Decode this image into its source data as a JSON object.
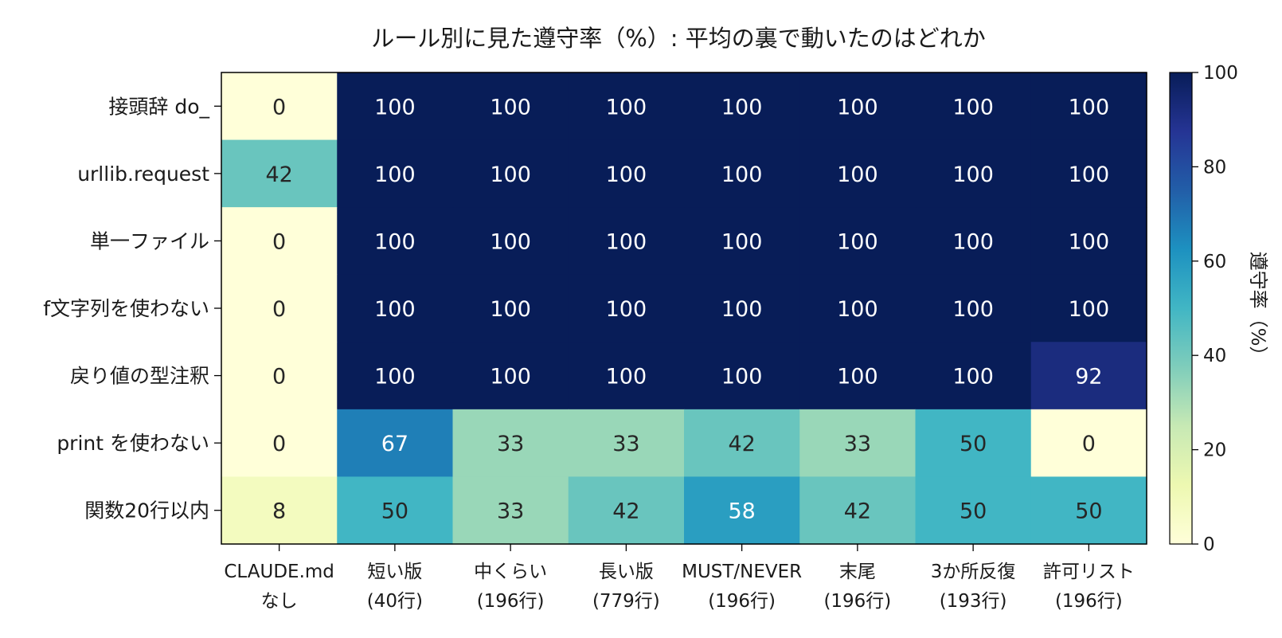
{
  "chart_data": {
    "type": "heatmap",
    "title": "ルール別に見た遵守率（%）: 平均の裏で動いたのはどれか",
    "rows": [
      "接頭辞 do_",
      "urllib.request",
      "単一ファイル",
      "f文字列を使わない",
      "戻り値の型注釈",
      "print を使わない",
      "関数20行以内"
    ],
    "columns": [
      [
        "CLAUDE.md",
        "なし"
      ],
      [
        "短い版",
        "(40行)"
      ],
      [
        "中くらい",
        "(196行)"
      ],
      [
        "長い版",
        "(779行)"
      ],
      [
        "MUST/NEVER",
        "(196行)"
      ],
      [
        "末尾",
        "(196行)"
      ],
      [
        "3か所反復",
        "(193行)"
      ],
      [
        "許可リスト",
        "(196行)"
      ]
    ],
    "values": [
      [
        0,
        100,
        100,
        100,
        100,
        100,
        100,
        100
      ],
      [
        42,
        100,
        100,
        100,
        100,
        100,
        100,
        100
      ],
      [
        0,
        100,
        100,
        100,
        100,
        100,
        100,
        100
      ],
      [
        0,
        100,
        100,
        100,
        100,
        100,
        100,
        100
      ],
      [
        0,
        100,
        100,
        100,
        100,
        100,
        100,
        92
      ],
      [
        0,
        67,
        33,
        33,
        42,
        33,
        50,
        0
      ],
      [
        8,
        50,
        33,
        42,
        58,
        42,
        50,
        50
      ]
    ],
    "colorbar": {
      "label": "遵守率（%）",
      "range": [
        0,
        100
      ],
      "ticks": [
        0,
        20,
        40,
        60,
        80,
        100
      ],
      "colormap": "YlGnBu"
    }
  }
}
